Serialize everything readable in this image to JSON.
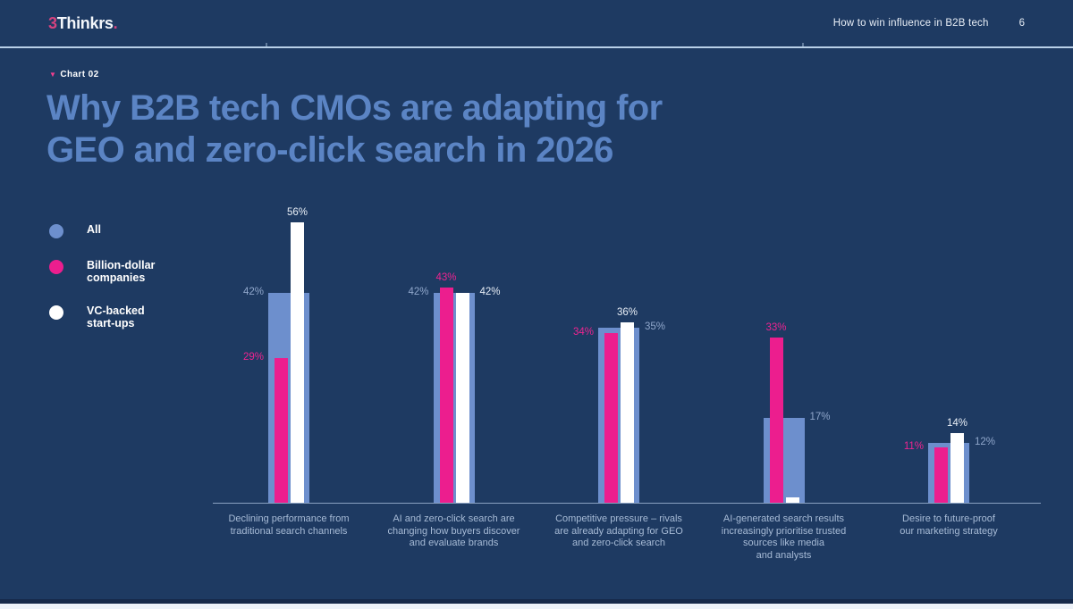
{
  "header": {
    "logo": {
      "prefix": "3",
      "name": "Thinkrs",
      "suffix": "."
    },
    "doc_title": "How to win influence in B2B tech",
    "page_number": "6"
  },
  "chart_tag": "Chart 02",
  "title": {
    "line1": "Why B2B tech CMOs are adapting for",
    "line2": "GEO and zero-click search in 2026"
  },
  "chart_data": {
    "type": "bar",
    "title": "Why B2B tech CMOs are adapting for GEO and zero-click search in 2026",
    "unit": "%",
    "ylim": [
      0,
      60
    ],
    "grid": false,
    "y_axis_visible": false,
    "legend_position": "left",
    "colors": {
      "background": "#1e3a62",
      "title": "#5b84c4",
      "axis_line": "#8aa2c2",
      "category_label": "#a7bbd6"
    },
    "series": [
      {
        "id": "all",
        "name": "All",
        "legend_label": "All",
        "color": "#6d8fcd",
        "label_color": "#90a7cb"
      },
      {
        "id": "billion",
        "name": "Billion-dollar companies",
        "legend_label": "Billion-dollar\ncompanies",
        "color": "#ec1e8e",
        "label_color": "#ee2490"
      },
      {
        "id": "vc",
        "name": "VC-backed start-ups",
        "legend_label": "VC-backed\nstart-ups",
        "color": "#ffffff",
        "label_color": "#e8eef6"
      }
    ],
    "categories": [
      {
        "label": "Declining performance from\ntraditional search channels",
        "bars": [
          {
            "series": "all",
            "value": 42,
            "callout": "left"
          },
          {
            "series": "billion",
            "value": 29,
            "callout": "left"
          },
          {
            "series": "vc",
            "value": 56,
            "callout": "top"
          }
        ]
      },
      {
        "label": "AI and zero-click search are\nchanging how buyers discover\nand evaluate brands",
        "bars": [
          {
            "series": "all",
            "value": 42,
            "callout": "left"
          },
          {
            "series": "billion",
            "value": 43,
            "callout": "top"
          },
          {
            "series": "vc",
            "value": 42,
            "callout": "right"
          }
        ]
      },
      {
        "label": "Competitive pressure – rivals\nare already adapting for GEO\nand zero-click search",
        "bars": [
          {
            "series": "all",
            "value": 35,
            "callout": "right"
          },
          {
            "series": "billion",
            "value": 34,
            "callout": "left"
          },
          {
            "series": "vc",
            "value": 36,
            "callout": "top"
          }
        ]
      },
      {
        "label": "AI-generated search results\nincreasingly prioritise trusted\nsources like media\nand analysts",
        "bars": [
          {
            "series": "all",
            "value": 17,
            "callout": "right"
          },
          {
            "series": "billion",
            "value": 33,
            "callout": "top"
          },
          {
            "series": "vc",
            "value": 1,
            "callout": "top"
          }
        ]
      },
      {
        "label": "Desire to future-proof\nour marketing strategy",
        "bars": [
          {
            "series": "all",
            "value": 12,
            "callout": "right"
          },
          {
            "series": "billion",
            "value": 11,
            "callout": "left"
          },
          {
            "series": "vc",
            "value": 14,
            "callout": "top"
          }
        ]
      }
    ]
  }
}
